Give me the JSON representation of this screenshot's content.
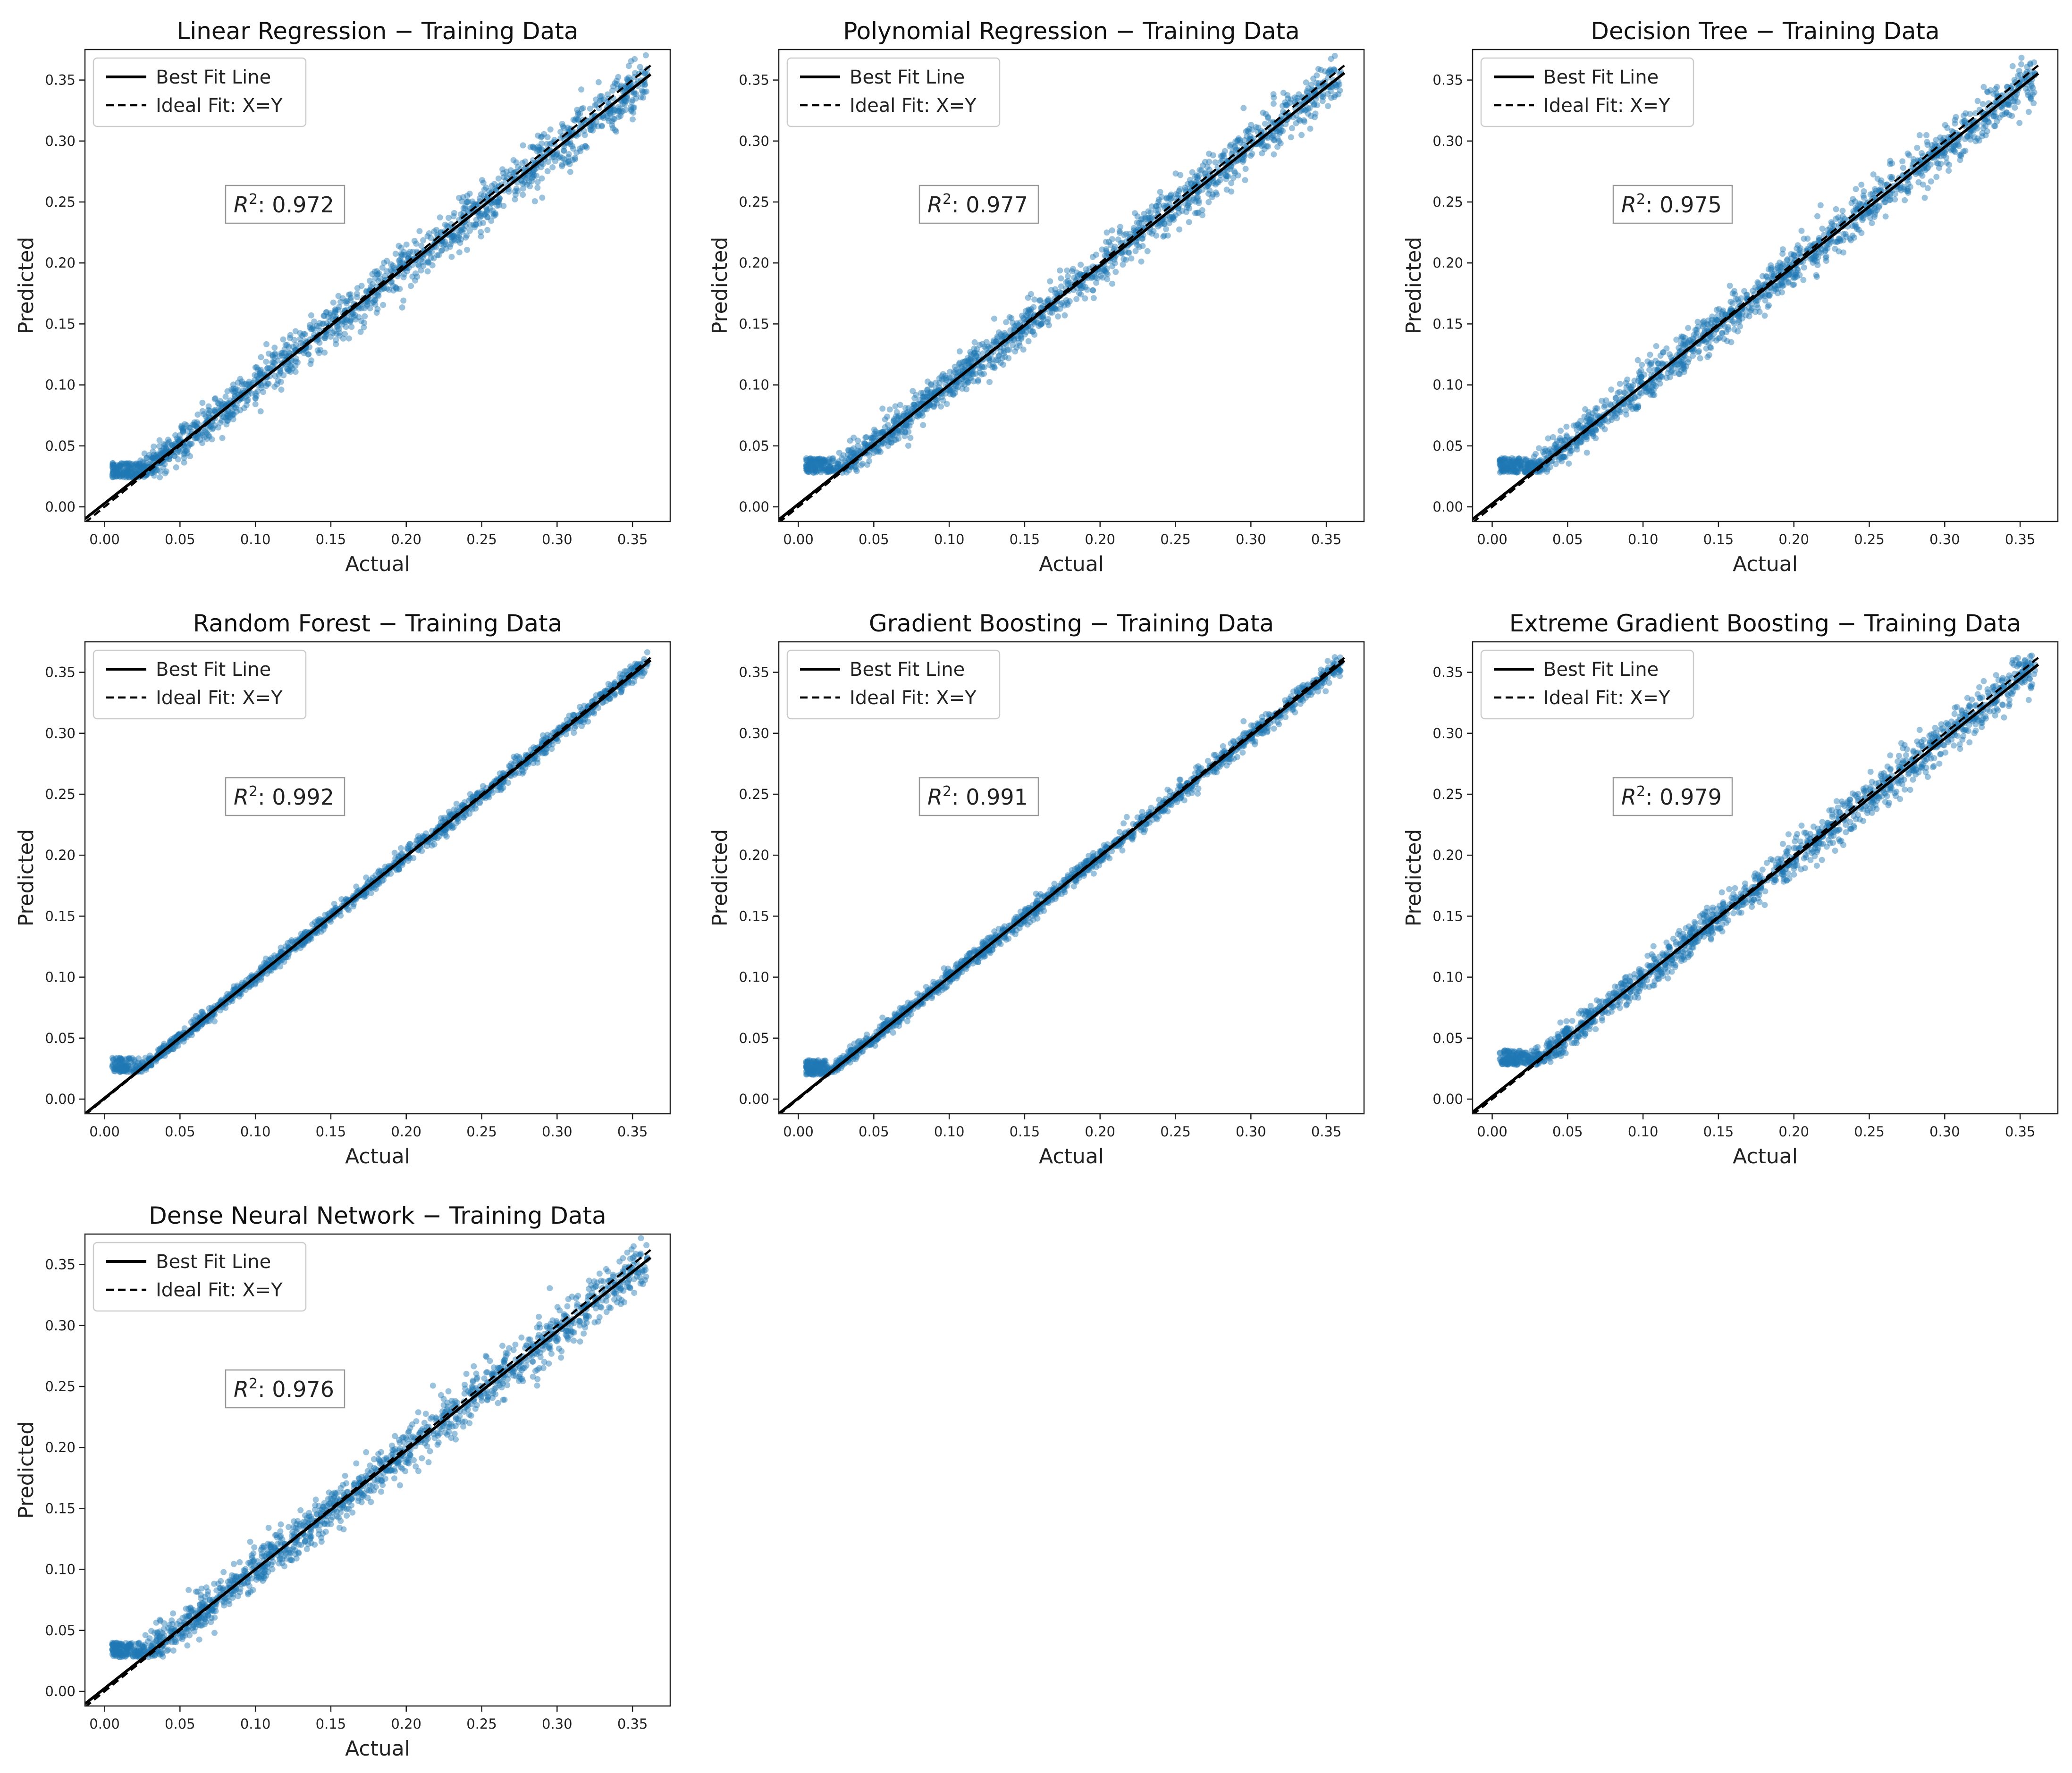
{
  "figure": {
    "background": "#ffffff",
    "point_color": "#1f77b4",
    "line_color": "#000000"
  },
  "chart_data": [
    {
      "type": "scatter",
      "title": "Linear Regression − Training Data",
      "xlabel": "Actual",
      "ylabel": "Predicted",
      "xlim": [
        -0.013,
        0.375
      ],
      "ylim": [
        -0.012,
        0.375
      ],
      "xticks": [
        "0.00",
        "0.05",
        "0.10",
        "0.15",
        "0.20",
        "0.25",
        "0.30",
        "0.35"
      ],
      "yticks": [
        "0.00",
        "0.05",
        "0.10",
        "0.15",
        "0.20",
        "0.25",
        "0.30",
        "0.35"
      ],
      "legend": [
        "Best Fit Line",
        "Ideal Fit: X=Y"
      ],
      "legend_loc": "upper-left",
      "r2_label": "0.972",
      "r2": 0.972,
      "best_fit": {
        "slope": 0.972,
        "intercept": 0.0028
      },
      "ideal_fit": {
        "slope": 1,
        "intercept": 0
      },
      "scatter_spread": 0.011,
      "floor": 0.024
    },
    {
      "type": "scatter",
      "title": "Polynomial Regression − Training Data",
      "xlabel": "Actual",
      "ylabel": "Predicted",
      "xlim": [
        -0.013,
        0.375
      ],
      "ylim": [
        -0.012,
        0.375
      ],
      "xticks": [
        "0.00",
        "0.05",
        "0.10",
        "0.15",
        "0.20",
        "0.25",
        "0.30",
        "0.35"
      ],
      "yticks": [
        "0.00",
        "0.05",
        "0.10",
        "0.15",
        "0.20",
        "0.25",
        "0.30",
        "0.35"
      ],
      "legend": [
        "Best Fit Line",
        "Ideal Fit: X=Y"
      ],
      "legend_loc": "upper-left",
      "r2_label": "0.977",
      "r2": 0.977,
      "best_fit": {
        "slope": 0.977,
        "intercept": 0.0022
      },
      "ideal_fit": {
        "slope": 1,
        "intercept": 0
      },
      "scatter_spread": 0.01,
      "floor": 0.028
    },
    {
      "type": "scatter",
      "title": "Decision Tree − Training Data",
      "xlabel": "Actual",
      "ylabel": "Predicted",
      "xlim": [
        -0.013,
        0.375
      ],
      "ylim": [
        -0.012,
        0.375
      ],
      "xticks": [
        "0.00",
        "0.05",
        "0.10",
        "0.15",
        "0.20",
        "0.25",
        "0.30",
        "0.35"
      ],
      "yticks": [
        "0.00",
        "0.05",
        "0.10",
        "0.15",
        "0.20",
        "0.25",
        "0.30",
        "0.35"
      ],
      "legend": [
        "Best Fit Line",
        "Ideal Fit: X=Y"
      ],
      "legend_loc": "upper-left",
      "r2_label": "0.975",
      "r2": 0.975,
      "best_fit": {
        "slope": 0.975,
        "intercept": 0.0025
      },
      "ideal_fit": {
        "slope": 1,
        "intercept": 0
      },
      "scatter_spread": 0.01,
      "floor": 0.028
    },
    {
      "type": "scatter",
      "title": "Random Forest − Training Data",
      "xlabel": "Actual",
      "ylabel": "Predicted",
      "xlim": [
        -0.013,
        0.375
      ],
      "ylim": [
        -0.012,
        0.375
      ],
      "xticks": [
        "0.00",
        "0.05",
        "0.10",
        "0.15",
        "0.20",
        "0.25",
        "0.30",
        "0.35"
      ],
      "yticks": [
        "0.00",
        "0.05",
        "0.10",
        "0.15",
        "0.20",
        "0.25",
        "0.30",
        "0.35"
      ],
      "legend": [
        "Best Fit Line",
        "Ideal Fit: X=Y"
      ],
      "legend_loc": "upper-left",
      "r2_label": "0.992",
      "r2": 0.992,
      "best_fit": {
        "slope": 0.992,
        "intercept": 0.0008
      },
      "ideal_fit": {
        "slope": 1,
        "intercept": 0
      },
      "scatter_spread": 0.004,
      "floor": 0.022
    },
    {
      "type": "scatter",
      "title": "Gradient Boosting − Training Data",
      "xlabel": "Actual",
      "ylabel": "Predicted",
      "xlim": [
        -0.013,
        0.375
      ],
      "ylim": [
        -0.012,
        0.375
      ],
      "xticks": [
        "0.00",
        "0.05",
        "0.10",
        "0.15",
        "0.20",
        "0.25",
        "0.30",
        "0.35"
      ],
      "yticks": [
        "0.00",
        "0.05",
        "0.10",
        "0.15",
        "0.20",
        "0.25",
        "0.30",
        "0.35"
      ],
      "legend": [
        "Best Fit Line",
        "Ideal Fit: X=Y"
      ],
      "legend_loc": "upper-left",
      "r2_label": "0.991",
      "r2": 0.991,
      "best_fit": {
        "slope": 0.991,
        "intercept": 0.0009
      },
      "ideal_fit": {
        "slope": 1,
        "intercept": 0
      },
      "scatter_spread": 0.0045,
      "floor": 0.02
    },
    {
      "type": "scatter",
      "title": "Extreme Gradient Boosting − Training Data",
      "xlabel": "Actual",
      "ylabel": "Predicted",
      "xlim": [
        -0.013,
        0.375
      ],
      "ylim": [
        -0.012,
        0.375
      ],
      "xticks": [
        "0.00",
        "0.05",
        "0.10",
        "0.15",
        "0.20",
        "0.25",
        "0.30",
        "0.35"
      ],
      "yticks": [
        "0.00",
        "0.05",
        "0.10",
        "0.15",
        "0.20",
        "0.25",
        "0.30",
        "0.35"
      ],
      "legend": [
        "Best Fit Line",
        "Ideal Fit: X=Y"
      ],
      "legend_loc": "upper-left",
      "r2_label": "0.979",
      "r2": 0.979,
      "best_fit": {
        "slope": 0.979,
        "intercept": 0.002
      },
      "ideal_fit": {
        "slope": 1,
        "intercept": 0
      },
      "scatter_spread": 0.009,
      "floor": 0.028
    },
    {
      "type": "scatter",
      "title": "Dense Neural Network − Training Data",
      "xlabel": "Actual",
      "ylabel": "Predicted",
      "xlim": [
        -0.013,
        0.375
      ],
      "ylim": [
        -0.012,
        0.375
      ],
      "xticks": [
        "0.00",
        "0.05",
        "0.10",
        "0.15",
        "0.20",
        "0.25",
        "0.30",
        "0.35"
      ],
      "yticks": [
        "0.00",
        "0.05",
        "0.10",
        "0.15",
        "0.20",
        "0.25",
        "0.30",
        "0.35"
      ],
      "legend": [
        "Best Fit Line",
        "Ideal Fit: X=Y"
      ],
      "legend_loc": "upper-left",
      "r2_label": "0.976",
      "r2": 0.976,
      "best_fit": {
        "slope": 0.976,
        "intercept": 0.0024
      },
      "ideal_fit": {
        "slope": 1,
        "intercept": 0
      },
      "scatter_spread": 0.011,
      "floor": 0.028
    }
  ]
}
